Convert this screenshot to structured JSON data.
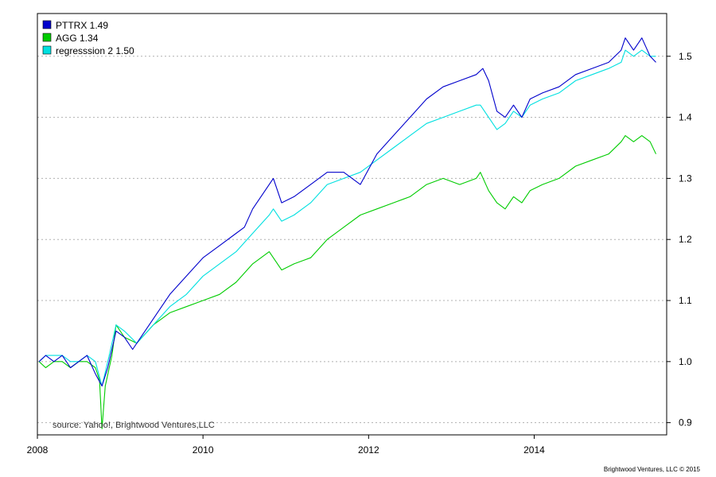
{
  "chart_data": {
    "type": "line",
    "title": "",
    "xlabel": "",
    "ylabel": "",
    "xlim": [
      2008.0,
      2015.6
    ],
    "ylim": [
      0.88,
      1.57
    ],
    "x_ticks": [
      2008,
      2010,
      2012,
      2014
    ],
    "x_tick_labels": [
      "2008",
      "2010",
      "2012",
      "2014"
    ],
    "y_ticks": [
      0.9,
      1.0,
      1.1,
      1.2,
      1.3,
      1.4,
      1.5
    ],
    "y_tick_labels": [
      "0.9",
      "1.0",
      "1.1",
      "1.2",
      "1.3",
      "1.4",
      "1.5"
    ],
    "grid": "horizontal dotted",
    "legend_position": "top-left",
    "series": [
      {
        "name": "PTTRX 1.49",
        "color": "#0000cc",
        "points": [
          [
            2008.02,
            1.0
          ],
          [
            2008.1,
            1.01
          ],
          [
            2008.2,
            1.0
          ],
          [
            2008.3,
            1.01
          ],
          [
            2008.4,
            0.99
          ],
          [
            2008.5,
            1.0
          ],
          [
            2008.6,
            1.01
          ],
          [
            2008.7,
            0.98
          ],
          [
            2008.78,
            0.96
          ],
          [
            2008.85,
            0.99
          ],
          [
            2008.95,
            1.05
          ],
          [
            2009.05,
            1.04
          ],
          [
            2009.15,
            1.02
          ],
          [
            2009.25,
            1.04
          ],
          [
            2009.4,
            1.07
          ],
          [
            2009.6,
            1.11
          ],
          [
            2009.8,
            1.14
          ],
          [
            2010.0,
            1.17
          ],
          [
            2010.2,
            1.19
          ],
          [
            2010.4,
            1.21
          ],
          [
            2010.5,
            1.22
          ],
          [
            2010.6,
            1.25
          ],
          [
            2010.7,
            1.27
          ],
          [
            2010.8,
            1.29
          ],
          [
            2010.85,
            1.3
          ],
          [
            2010.95,
            1.26
          ],
          [
            2011.1,
            1.27
          ],
          [
            2011.3,
            1.29
          ],
          [
            2011.5,
            1.31
          ],
          [
            2011.7,
            1.31
          ],
          [
            2011.9,
            1.29
          ],
          [
            2012.1,
            1.34
          ],
          [
            2012.3,
            1.37
          ],
          [
            2012.5,
            1.4
          ],
          [
            2012.7,
            1.43
          ],
          [
            2012.9,
            1.45
          ],
          [
            2013.1,
            1.46
          ],
          [
            2013.3,
            1.47
          ],
          [
            2013.38,
            1.48
          ],
          [
            2013.45,
            1.46
          ],
          [
            2013.55,
            1.41
          ],
          [
            2013.65,
            1.4
          ],
          [
            2013.75,
            1.42
          ],
          [
            2013.85,
            1.4
          ],
          [
            2013.95,
            1.43
          ],
          [
            2014.1,
            1.44
          ],
          [
            2014.3,
            1.45
          ],
          [
            2014.5,
            1.47
          ],
          [
            2014.7,
            1.48
          ],
          [
            2014.9,
            1.49
          ],
          [
            2015.05,
            1.51
          ],
          [
            2015.1,
            1.53
          ],
          [
            2015.2,
            1.51
          ],
          [
            2015.3,
            1.53
          ],
          [
            2015.4,
            1.5
          ],
          [
            2015.47,
            1.49
          ]
        ]
      },
      {
        "name": "AGG 1.34",
        "color": "#00cc00",
        "points": [
          [
            2008.02,
            1.0
          ],
          [
            2008.1,
            0.99
          ],
          [
            2008.2,
            1.0
          ],
          [
            2008.3,
            1.0
          ],
          [
            2008.4,
            0.99
          ],
          [
            2008.5,
            1.0
          ],
          [
            2008.6,
            1.0
          ],
          [
            2008.7,
            0.99
          ],
          [
            2008.75,
            0.97
          ],
          [
            2008.78,
            0.89
          ],
          [
            2008.82,
            0.96
          ],
          [
            2008.9,
            1.01
          ],
          [
            2008.95,
            1.06
          ],
          [
            2009.05,
            1.04
          ],
          [
            2009.2,
            1.03
          ],
          [
            2009.4,
            1.06
          ],
          [
            2009.6,
            1.08
          ],
          [
            2009.8,
            1.09
          ],
          [
            2010.0,
            1.1
          ],
          [
            2010.2,
            1.11
          ],
          [
            2010.4,
            1.13
          ],
          [
            2010.6,
            1.16
          ],
          [
            2010.8,
            1.18
          ],
          [
            2010.95,
            1.15
          ],
          [
            2011.1,
            1.16
          ],
          [
            2011.3,
            1.17
          ],
          [
            2011.5,
            1.2
          ],
          [
            2011.7,
            1.22
          ],
          [
            2011.9,
            1.24
          ],
          [
            2012.1,
            1.25
          ],
          [
            2012.3,
            1.26
          ],
          [
            2012.5,
            1.27
          ],
          [
            2012.7,
            1.29
          ],
          [
            2012.9,
            1.3
          ],
          [
            2013.1,
            1.29
          ],
          [
            2013.3,
            1.3
          ],
          [
            2013.35,
            1.31
          ],
          [
            2013.45,
            1.28
          ],
          [
            2013.55,
            1.26
          ],
          [
            2013.65,
            1.25
          ],
          [
            2013.75,
            1.27
          ],
          [
            2013.85,
            1.26
          ],
          [
            2013.95,
            1.28
          ],
          [
            2014.1,
            1.29
          ],
          [
            2014.3,
            1.3
          ],
          [
            2014.5,
            1.32
          ],
          [
            2014.7,
            1.33
          ],
          [
            2014.9,
            1.34
          ],
          [
            2015.05,
            1.36
          ],
          [
            2015.1,
            1.37
          ],
          [
            2015.2,
            1.36
          ],
          [
            2015.3,
            1.37
          ],
          [
            2015.4,
            1.36
          ],
          [
            2015.47,
            1.34
          ]
        ]
      },
      {
        "name": "regresssion 2 1.50",
        "color": "#00e0e0",
        "points": [
          [
            2008.02,
            1.0
          ],
          [
            2008.1,
            1.01
          ],
          [
            2008.2,
            1.01
          ],
          [
            2008.3,
            1.01
          ],
          [
            2008.4,
            1.0
          ],
          [
            2008.5,
            1.0
          ],
          [
            2008.6,
            1.01
          ],
          [
            2008.7,
            1.0
          ],
          [
            2008.78,
            0.96
          ],
          [
            2008.85,
            1.0
          ],
          [
            2008.95,
            1.06
          ],
          [
            2009.05,
            1.05
          ],
          [
            2009.2,
            1.03
          ],
          [
            2009.4,
            1.06
          ],
          [
            2009.6,
            1.09
          ],
          [
            2009.8,
            1.11
          ],
          [
            2010.0,
            1.14
          ],
          [
            2010.2,
            1.16
          ],
          [
            2010.4,
            1.18
          ],
          [
            2010.6,
            1.21
          ],
          [
            2010.8,
            1.24
          ],
          [
            2010.85,
            1.25
          ],
          [
            2010.95,
            1.23
          ],
          [
            2011.1,
            1.24
          ],
          [
            2011.3,
            1.26
          ],
          [
            2011.5,
            1.29
          ],
          [
            2011.7,
            1.3
          ],
          [
            2011.9,
            1.31
          ],
          [
            2012.1,
            1.33
          ],
          [
            2012.3,
            1.35
          ],
          [
            2012.5,
            1.37
          ],
          [
            2012.7,
            1.39
          ],
          [
            2012.9,
            1.4
          ],
          [
            2013.1,
            1.41
          ],
          [
            2013.3,
            1.42
          ],
          [
            2013.35,
            1.42
          ],
          [
            2013.45,
            1.4
          ],
          [
            2013.55,
            1.38
          ],
          [
            2013.65,
            1.39
          ],
          [
            2013.75,
            1.41
          ],
          [
            2013.85,
            1.4
          ],
          [
            2013.95,
            1.42
          ],
          [
            2014.1,
            1.43
          ],
          [
            2014.3,
            1.44
          ],
          [
            2014.5,
            1.46
          ],
          [
            2014.7,
            1.47
          ],
          [
            2014.9,
            1.48
          ],
          [
            2015.05,
            1.49
          ],
          [
            2015.1,
            1.51
          ],
          [
            2015.2,
            1.5
          ],
          [
            2015.3,
            1.51
          ],
          [
            2015.4,
            1.5
          ],
          [
            2015.47,
            1.5
          ]
        ]
      }
    ],
    "annotations": {
      "source": "source: Yahoo!, Brightwood Ventures,LLC",
      "footer": "Brightwood Ventures, LLC © 2015"
    }
  }
}
